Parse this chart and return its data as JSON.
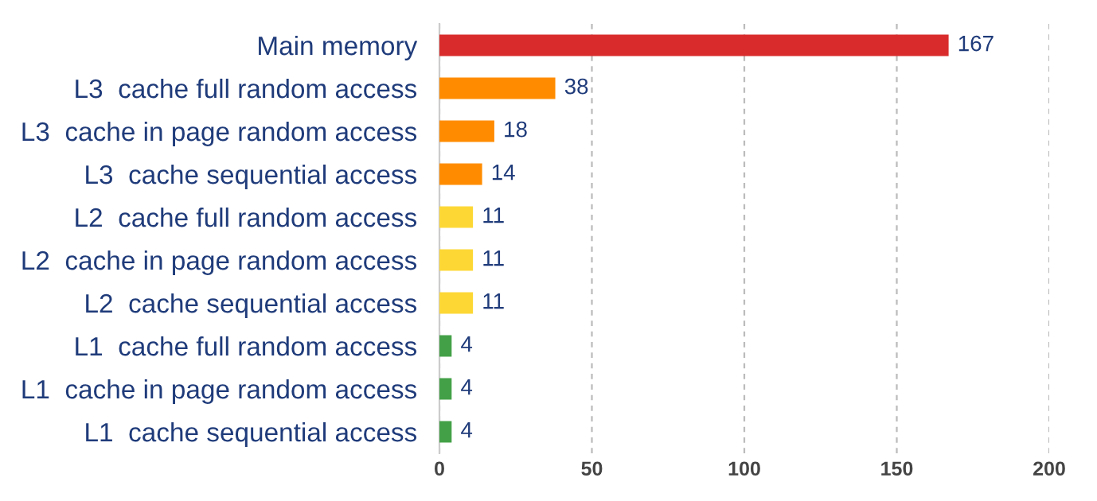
{
  "chart_data": {
    "type": "bar",
    "orientation": "horizontal",
    "categories": [
      "Main memory",
      "L3  cache full random access",
      "L3  cache in page random access",
      "L3  cache sequential access",
      "L2  cache full random access",
      "L2  cache in page random access",
      "L2  cache sequential access",
      "L1  cache full random access",
      "L1  cache in page random access",
      "L1  cache sequential access"
    ],
    "values": [
      167,
      38,
      18,
      14,
      11,
      11,
      11,
      4,
      4,
      4
    ],
    "colors": [
      "#d92b2b",
      "#ff8c00",
      "#ff8c00",
      "#ff8c00",
      "#fdd835",
      "#fdd835",
      "#fdd835",
      "#43a047",
      "#43a047",
      "#43a047"
    ],
    "xlim": [
      0,
      200
    ],
    "xticks": [
      0,
      50,
      100,
      150,
      200
    ],
    "grid": "x",
    "data_labels": true
  }
}
